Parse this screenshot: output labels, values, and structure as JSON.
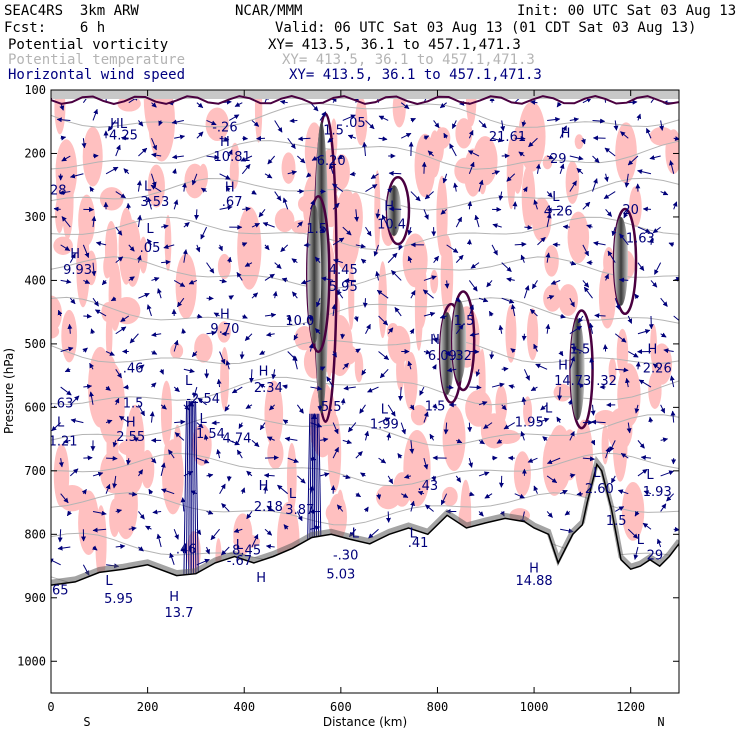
{
  "header": {
    "line1_left": "SEAC4RS  3km ARW",
    "line1_center": "NCAR/MMM",
    "line1_right": "Init: 00 UTC Sat 03 Aug 13",
    "line2_left": "Fcst:    6 h",
    "line2_right": "Valid: 06 UTC Sat 03 Aug 13 (01 CDT Sat 03 Aug 13)",
    "fields": [
      {
        "name": "Potential vorticity",
        "coords": "XY= 413.5, 36.1 to 457.1,471.3",
        "color": "#000000"
      },
      {
        "name": "Potential temperature",
        "coords": "XY= 413.5, 36.1 to 457.1,471.3",
        "color": "#b4b4b4"
      },
      {
        "name": "Horizontal wind speed",
        "coords": "XY= 413.5, 36.1 to 457.1,471.3",
        "color": "#000080"
      }
    ]
  },
  "colors": {
    "pv_fill": "#ffc0c0",
    "pv_contour": "#4a0040",
    "theta": "#b4b4b4",
    "wind": "#00007a",
    "terrain_fill": "#ffffff",
    "terrain_shade": "#5a5a5a"
  },
  "chart_data": {
    "type": "cross-section",
    "xlabel": "Distance (km)",
    "ylabel": "Pressure (hPa)",
    "xlim": [
      0,
      1300
    ],
    "ylim": [
      1050,
      100
    ],
    "x_ticks": [
      0,
      200,
      400,
      600,
      800,
      1000,
      1200
    ],
    "y_ticks": [
      100,
      200,
      300,
      400,
      500,
      600,
      700,
      800,
      900,
      1000
    ],
    "x_end_labels": {
      "left": "S",
      "right": "N"
    },
    "terrain_surface_hPa": [
      [
        0,
        880
      ],
      [
        50,
        875
      ],
      [
        100,
        860
      ],
      [
        150,
        855
      ],
      [
        200,
        848
      ],
      [
        260,
        865
      ],
      [
        300,
        862
      ],
      [
        340,
        845
      ],
      [
        380,
        835
      ],
      [
        420,
        845
      ],
      [
        460,
        835
      ],
      [
        500,
        822
      ],
      [
        540,
        805
      ],
      [
        580,
        800
      ],
      [
        620,
        808
      ],
      [
        660,
        815
      ],
      [
        700,
        800
      ],
      [
        740,
        790
      ],
      [
        780,
        800
      ],
      [
        820,
        770
      ],
      [
        860,
        790
      ],
      [
        900,
        782
      ],
      [
        940,
        775
      ],
      [
        980,
        780
      ],
      [
        1000,
        790
      ],
      [
        1030,
        800
      ],
      [
        1050,
        845
      ],
      [
        1080,
        800
      ],
      [
        1100,
        785
      ],
      [
        1110,
        750
      ],
      [
        1130,
        690
      ],
      [
        1140,
        700
      ],
      [
        1160,
        760
      ],
      [
        1180,
        840
      ],
      [
        1200,
        855
      ],
      [
        1220,
        850
      ],
      [
        1240,
        840
      ],
      [
        1260,
        850
      ],
      [
        1280,
        835
      ],
      [
        1300,
        815
      ]
    ],
    "pv_high_columns": [
      {
        "x": 560,
        "p_top": 150,
        "p_bot": 610
      },
      {
        "x": 545,
        "p_top": 280,
        "p_bot": 500
      },
      {
        "x": 710,
        "p_top": 250,
        "p_bot": 330
      },
      {
        "x": 820,
        "p_top": 450,
        "p_bot": 580
      },
      {
        "x": 845,
        "p_top": 430,
        "p_bot": 560
      },
      {
        "x": 1180,
        "p_top": 300,
        "p_bot": 440
      },
      {
        "x": 1090,
        "p_top": 460,
        "p_bot": 620
      }
    ],
    "annotations": [
      {
        "text": "HL",
        "x": 140,
        "p": 160
      },
      {
        "text": "4.25",
        "x": 150,
        "p": 178
      },
      {
        "text": "-.26",
        "x": 360,
        "p": 165
      },
      {
        "text": "H",
        "x": 360,
        "p": 188
      },
      {
        "text": "10.81",
        "x": 375,
        "p": 212
      },
      {
        "text": "H",
        "x": 370,
        "p": 260
      },
      {
        "text": ".67",
        "x": 375,
        "p": 283
      },
      {
        "text": "1.5",
        "x": 585,
        "p": 170
      },
      {
        "text": "6.20",
        "x": 580,
        "p": 218
      },
      {
        "text": ".05",
        "x": 630,
        "p": 158
      },
      {
        "text": "L",
        "x": 200,
        "p": 258
      },
      {
        "text": "3.53",
        "x": 215,
        "p": 283
      },
      {
        "text": "L",
        "x": 205,
        "p": 325
      },
      {
        "text": ".05",
        "x": 205,
        "p": 355
      },
      {
        "text": "28",
        "x": 15,
        "p": 265
      },
      {
        "text": "H",
        "x": 50,
        "p": 365
      },
      {
        "text": "9.93",
        "x": 55,
        "p": 390
      },
      {
        "text": "1.5",
        "x": 550,
        "p": 325
      },
      {
        "text": "4.45",
        "x": 605,
        "p": 390
      },
      {
        "text": "5.95",
        "x": 605,
        "p": 417
      },
      {
        "text": "H",
        "x": 700,
        "p": 290
      },
      {
        "text": "10.4",
        "x": 705,
        "p": 318
      },
      {
        "text": "H",
        "x": 360,
        "p": 460
      },
      {
        "text": "9.70",
        "x": 360,
        "p": 483
      },
      {
        "text": "10.0",
        "x": 515,
        "p": 470
      },
      {
        "text": ".46",
        "x": 170,
        "p": 545
      },
      {
        "text": "1.5",
        "x": 170,
        "p": 600
      },
      {
        "text": "L",
        "x": 285,
        "p": 565
      },
      {
        "text": "-2.54",
        "x": 315,
        "p": 593
      },
      {
        "text": "H",
        "x": 440,
        "p": 550
      },
      {
        "text": "2.34",
        "x": 450,
        "p": 576
      },
      {
        "text": "L",
        "x": 20,
        "p": 630
      },
      {
        "text": "-.63",
        "x": 20,
        "p": 600
      },
      {
        "text": "1.21",
        "x": 25,
        "p": 660
      },
      {
        "text": "H",
        "x": 165,
        "p": 630
      },
      {
        "text": "2.55",
        "x": 165,
        "p": 653
      },
      {
        "text": "L",
        "x": 315,
        "p": 625
      },
      {
        "text": "1.54",
        "x": 330,
        "p": 648
      },
      {
        "text": "4.74",
        "x": 385,
        "p": 655
      },
      {
        "text": "5.5",
        "x": 580,
        "p": 606
      },
      {
        "text": "L",
        "x": 690,
        "p": 610
      },
      {
        "text": "1.99",
        "x": 690,
        "p": 633
      },
      {
        "text": "1.5",
        "x": 855,
        "p": 470
      },
      {
        "text": "H",
        "x": 795,
        "p": 500
      },
      {
        "text": "6.09",
        "x": 810,
        "p": 525
      },
      {
        "text": ".32",
        "x": 850,
        "p": 525
      },
      {
        "text": "1.5",
        "x": 795,
        "p": 605
      },
      {
        "text": "L",
        "x": 1030,
        "p": 608
      },
      {
        "text": "1.95",
        "x": 990,
        "p": 630
      },
      {
        "text": "H",
        "x": 1060,
        "p": 540
      },
      {
        "text": "14.73",
        "x": 1080,
        "p": 565
      },
      {
        "text": "1.5",
        "x": 1095,
        "p": 515
      },
      {
        "text": ".32",
        "x": 1150,
        "p": 565
      },
      {
        "text": "H",
        "x": 1245,
        "p": 515
      },
      {
        "text": "2.26",
        "x": 1255,
        "p": 545
      },
      {
        "text": "20",
        "x": 1200,
        "p": 295
      },
      {
        "text": "1.63",
        "x": 1220,
        "p": 340
      },
      {
        "text": "L",
        "x": 1045,
        "p": 275
      },
      {
        "text": "4.26",
        "x": 1050,
        "p": 298
      },
      {
        "text": "H",
        "x": 1065,
        "p": 175
      },
      {
        "text": "21.61",
        "x": 945,
        "p": 180
      },
      {
        "text": "29",
        "x": 1050,
        "p": 215
      },
      {
        "text": "L",
        "x": 1130,
        "p": 710
      },
      {
        "text": "2.60",
        "x": 1135,
        "p": 735
      },
      {
        "text": "L",
        "x": 1240,
        "p": 713
      },
      {
        "text": "1.93",
        "x": 1255,
        "p": 740
      },
      {
        "text": "H",
        "x": 440,
        "p": 730
      },
      {
        "text": "2.18",
        "x": 450,
        "p": 763
      },
      {
        "text": "L",
        "x": 500,
        "p": 743
      },
      {
        "text": "3.87",
        "x": 515,
        "p": 768
      },
      {
        "text": ".43",
        "x": 780,
        "p": 730
      },
      {
        "text": "L",
        "x": 630,
        "p": 805
      },
      {
        "text": "-.30",
        "x": 610,
        "p": 840
      },
      {
        "text": "L",
        "x": 750,
        "p": 805
      },
      {
        "text": ".41",
        "x": 760,
        "p": 820
      },
      {
        "text": ".46",
        "x": 280,
        "p": 830
      },
      {
        "text": "L",
        "x": 390,
        "p": 823
      },
      {
        "text": "8.45",
        "x": 405,
        "p": 832
      },
      {
        "text": "-.67",
        "x": 390,
        "p": 848
      },
      {
        "text": "5.03",
        "x": 600,
        "p": 870
      },
      {
        "text": "H",
        "x": 435,
        "p": 875
      },
      {
        "text": "H",
        "x": 1000,
        "p": 860
      },
      {
        "text": "14.88",
        "x": 1000,
        "p": 880
      },
      {
        "text": "1.5",
        "x": 1170,
        "p": 785
      },
      {
        "text": "L",
        "x": 1220,
        "p": 815
      },
      {
        "text": "29",
        "x": 1250,
        "p": 840
      },
      {
        "text": ".65",
        "x": 15,
        "p": 895
      },
      {
        "text": "L",
        "x": 120,
        "p": 880
      },
      {
        "text": "5.95",
        "x": 140,
        "p": 908
      },
      {
        "text": "H",
        "x": 255,
        "p": 905
      },
      {
        "text": "13.7",
        "x": 265,
        "p": 930
      }
    ],
    "long_wind_vectors": [
      {
        "x": 290,
        "p_base": 1050,
        "p_tip": 590
      },
      {
        "x": 545,
        "p_base": 1035,
        "p_tip": 610
      }
    ]
  }
}
